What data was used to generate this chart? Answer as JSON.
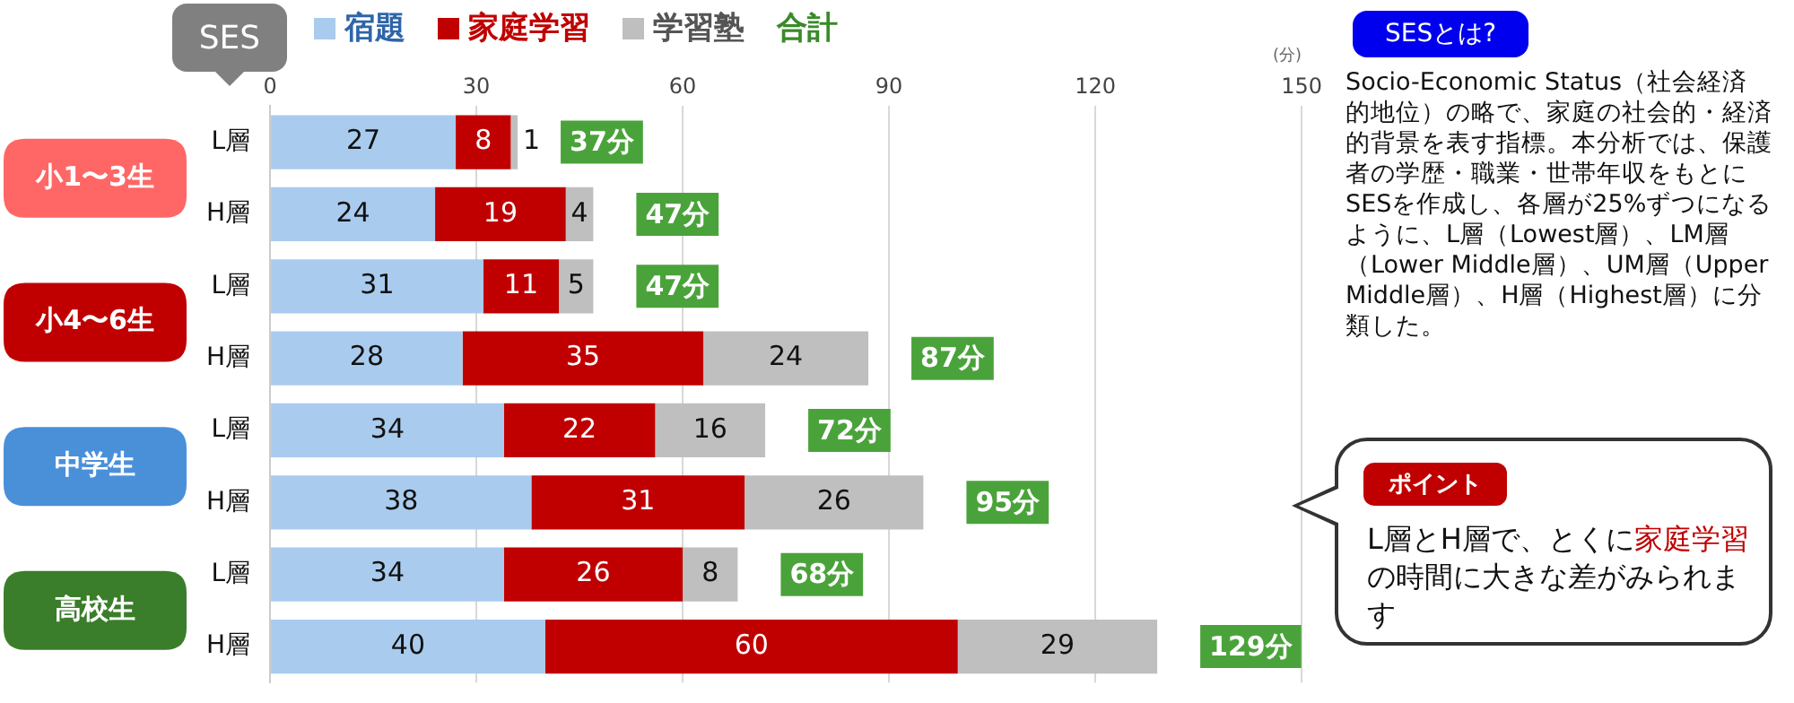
{
  "chart_data": {
    "type": "bar",
    "orientation": "horizontal",
    "stacked": true,
    "categories": [
      "L層",
      "H層",
      "L層",
      "H層",
      "L層",
      "H層",
      "L層",
      "H層"
    ],
    "series": [
      {
        "name": "宿題",
        "color": "#a9cbee",
        "values": [
          27,
          24,
          31,
          28,
          34,
          38,
          34,
          40
        ]
      },
      {
        "name": "家庭学習",
        "color": "#c00000",
        "values": [
          8,
          19,
          11,
          35,
          22,
          31,
          26,
          60
        ]
      },
      {
        "name": "学習塾",
        "color": "#bfbfbf",
        "values": [
          1,
          4,
          5,
          24,
          16,
          26,
          8,
          29
        ]
      }
    ],
    "totals": [
      "37分",
      "47分",
      "47分",
      "87分",
      "72分",
      "95分",
      "68分",
      "129分"
    ],
    "xlim": [
      0,
      150
    ],
    "xticks": [
      0,
      30,
      60,
      90,
      120,
      150
    ],
    "xlabel": "(分)",
    "grid": "x",
    "legend": "top left",
    "data_labels": true,
    "annotations": [
      "小1〜3生",
      "小4〜6生",
      "中学生",
      "高校生",
      "合計",
      "SES",
      "SESとは?",
      "Socio-Economic Status（社会経済的地位）の略で、家庭の社会的・経済的背景を表す指標。本分析では、保護者の学歴・職業・世帯年収をもとにSESを作成し、各層が25%ずつになるように、L層（Lowest層）、LM層（Lower Middle層）、UM層（Upper Middle層）、H層（Highest層）に分類した。",
      "ポイント",
      "L層とH層で、とくに家庭学習の時間に大きな差がみられます"
    ]
  }
}
